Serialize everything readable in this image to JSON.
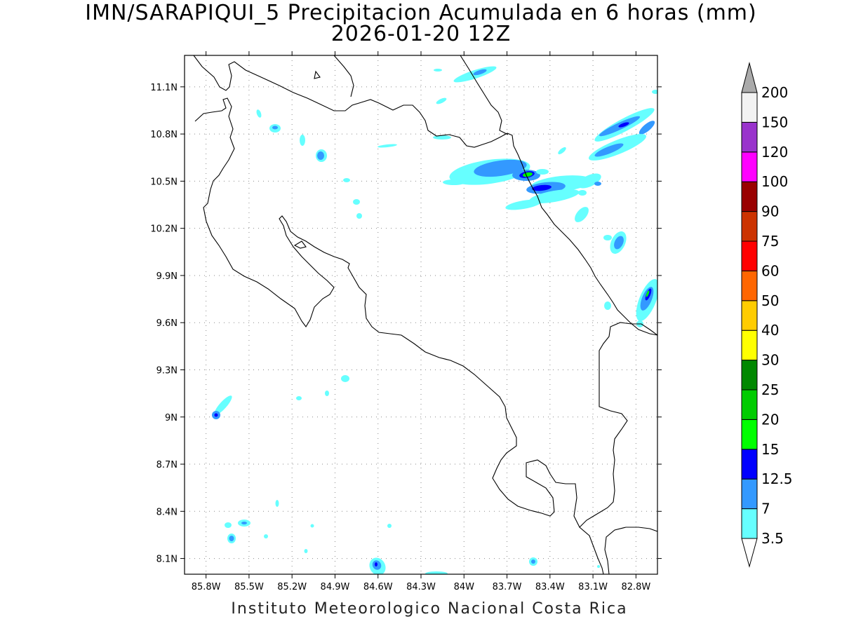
{
  "title": {
    "line1": "IMN/SARAPIQUI_5 Precipitacion Acumulada en 6 horas (mm)",
    "line2": "2026-01-20 12Z"
  },
  "footer": "Instituto Meteorologico Nacional Costa Rica",
  "map": {
    "lon_range": [
      -85.95,
      -82.65
    ],
    "lat_range": [
      8.0,
      11.3
    ],
    "lon_ticks": [
      -85.8,
      -85.5,
      -85.2,
      -84.9,
      -84.6,
      -84.3,
      -84.0,
      -83.7,
      -83.4,
      -83.1,
      -82.8
    ],
    "lon_labels": [
      "85.8W",
      "85.5W",
      "85.2W",
      "84.9W",
      "84.6W",
      "84.3W",
      "84W",
      "83.7W",
      "83.4W",
      "83.1W",
      "82.8W"
    ],
    "lat_ticks": [
      8.1,
      8.4,
      8.7,
      9.0,
      9.3,
      9.6,
      9.9,
      10.2,
      10.5,
      10.8,
      11.1
    ],
    "lat_labels": [
      "8.1N",
      "8.4N",
      "8.7N",
      "9N",
      "9.3N",
      "9.6N",
      "9.9N",
      "10.2N",
      "10.5N",
      "10.8N",
      "11.1N"
    ],
    "grid": "dotted"
  },
  "colorbar": {
    "labels": [
      "3.5",
      "7",
      "12.5",
      "15",
      "20",
      "25",
      "30",
      "40",
      "50",
      "60",
      "75",
      "90",
      "100",
      "120",
      "150",
      "200"
    ],
    "colors": [
      "#ffffff",
      "#66ffff",
      "#3399ff",
      "#0000ff",
      "#00ff00",
      "#00cc00",
      "#008800",
      "#ffff00",
      "#ffcc00",
      "#ff6600",
      "#ff0000",
      "#cc3300",
      "#990000",
      "#ff00ff",
      "#9933cc",
      "#f2f2f2"
    ],
    "over_color": "#aaaaaa",
    "under_color": "#ffffff"
  },
  "precip_cells": [
    {
      "lon": -83.75,
      "lat": 11.19,
      "level": 1
    },
    {
      "lon": -83.78,
      "lat": 11.19,
      "level": 2
    },
    {
      "lon": -82.98,
      "lat": 10.81,
      "level": 1
    },
    {
      "lon": -82.82,
      "lat": 10.86,
      "level": 2
    },
    {
      "lon": -82.8,
      "lat": 10.86,
      "level": 3
    },
    {
      "lon": -82.72,
      "lat": 10.86,
      "level": 1
    },
    {
      "lon": -82.92,
      "lat": 10.68,
      "level": 1
    },
    {
      "lon": -83.78,
      "lat": 10.56,
      "level": 1
    },
    {
      "lon": -83.72,
      "lat": 10.58,
      "level": 2
    },
    {
      "lon": -83.52,
      "lat": 10.54,
      "level": 2
    },
    {
      "lon": -83.48,
      "lat": 10.55,
      "level": 3
    },
    {
      "lon": -83.48,
      "lat": 10.55,
      "level": 4
    },
    {
      "lon": -83.28,
      "lat": 10.46,
      "level": 1
    },
    {
      "lon": -83.34,
      "lat": 10.45,
      "level": 2
    },
    {
      "lon": -83.37,
      "lat": 10.45,
      "level": 3
    },
    {
      "lon": -83.05,
      "lat": 10.5,
      "level": 1
    },
    {
      "lon": -83.04,
      "lat": 10.25,
      "level": 1
    },
    {
      "lon": -82.84,
      "lat": 10.12,
      "level": 1
    },
    {
      "lon": -82.84,
      "lat": 10.12,
      "level": 2
    },
    {
      "lon": -82.68,
      "lat": 9.76,
      "level": 1
    },
    {
      "lon": -82.68,
      "lat": 9.76,
      "level": 2
    },
    {
      "lon": -82.67,
      "lat": 9.79,
      "level": 3
    },
    {
      "lon": -84.91,
      "lat": 10.67,
      "level": 1
    },
    {
      "lon": -84.91,
      "lat": 10.67,
      "level": 2
    },
    {
      "lon": -85.79,
      "lat": 9.03,
      "level": 1
    },
    {
      "lon": -85.79,
      "lat": 9.02,
      "level": 2
    },
    {
      "lon": -85.64,
      "lat": 8.25,
      "level": 1
    },
    {
      "lon": -85.64,
      "lat": 8.24,
      "level": 2
    },
    {
      "lon": -84.6,
      "lat": 8.06,
      "level": 1
    },
    {
      "lon": -84.6,
      "lat": 8.06,
      "level": 2
    },
    {
      "lon": -83.41,
      "lat": 8.07,
      "level": 1
    },
    {
      "lon": -83.41,
      "lat": 8.07,
      "level": 2
    }
  ]
}
